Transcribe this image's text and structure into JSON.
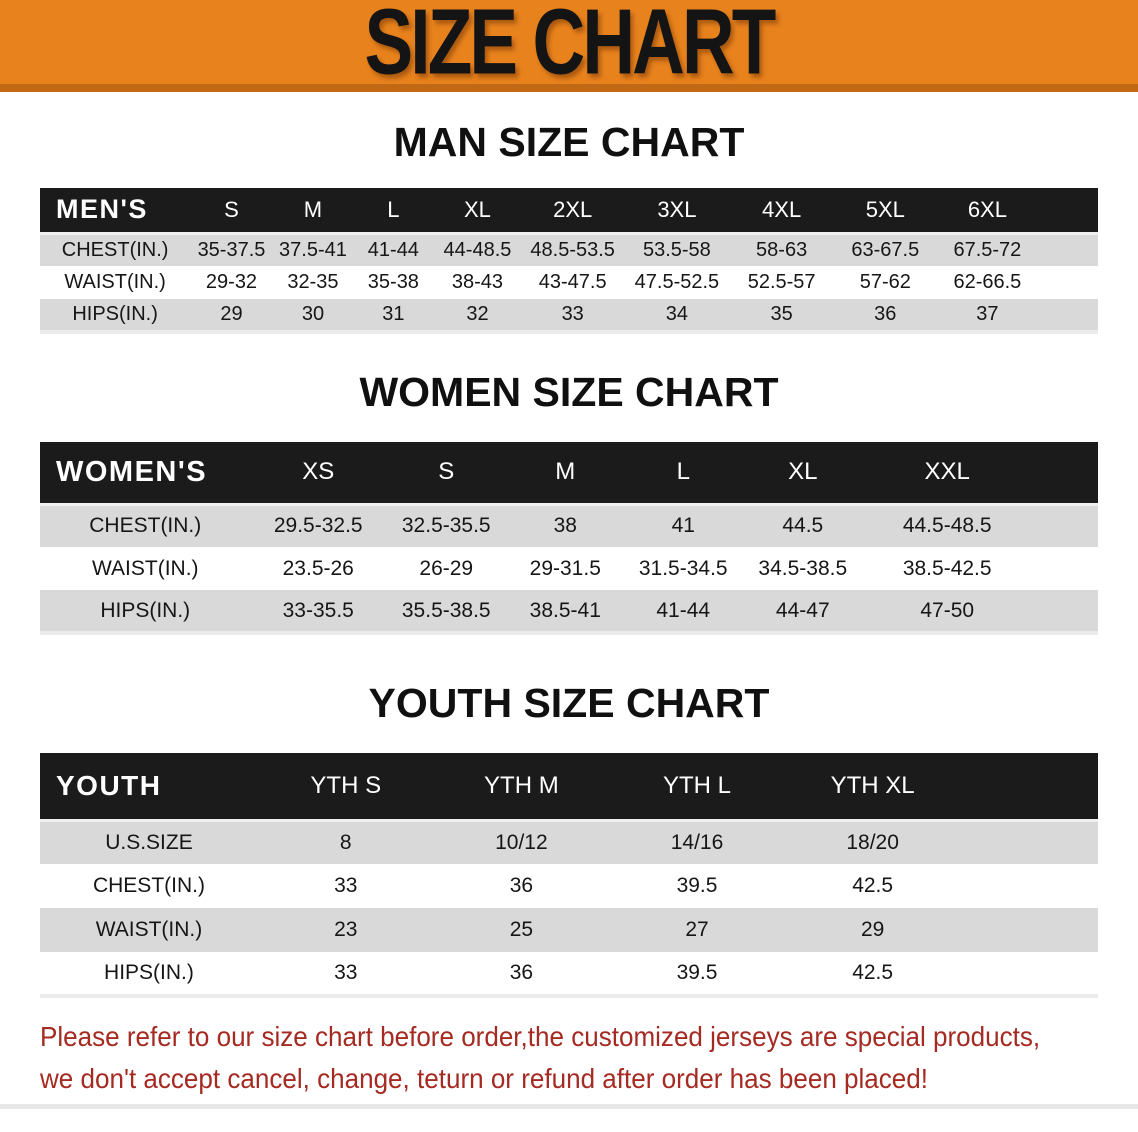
{
  "banner": {
    "title": "SIZE CHART"
  },
  "sections": [
    {
      "id": "men",
      "heading": "MAN SIZE CHART",
      "corner_label": "MEN'S",
      "columns": [
        "S",
        "M",
        "L",
        "XL",
        "2XL",
        "3XL",
        "4XL",
        "5XL",
        "6XL"
      ],
      "rows": [
        {
          "label": "CHEST(IN.)",
          "values": [
            "35-37.5",
            "37.5-41",
            "41-44",
            "44-48.5",
            "48.5-53.5",
            "53.5-58",
            "58-63",
            "63-67.5",
            "67.5-72"
          ]
        },
        {
          "label": "WAIST(IN.)",
          "values": [
            "29-32",
            "32-35",
            "35-38",
            "38-43",
            "43-47.5",
            "47.5-52.5",
            "52.5-57",
            "57-62",
            "62-66.5"
          ]
        },
        {
          "label": "HIPS(IN.)",
          "values": [
            "29",
            "30",
            "31",
            "32",
            "33",
            "34",
            "35",
            "36",
            "37"
          ]
        }
      ]
    },
    {
      "id": "women",
      "heading": "WOMEN SIZE CHART",
      "corner_label": "WOMEN'S",
      "columns": [
        "XS",
        "S",
        "M",
        "L",
        "XL",
        "XXL"
      ],
      "rows": [
        {
          "label": "CHEST(IN.)",
          "values": [
            "29.5-32.5",
            "32.5-35.5",
            "38",
            "41",
            "44.5",
            "44.5-48.5"
          ]
        },
        {
          "label": "WAIST(IN.)",
          "values": [
            "23.5-26",
            "26-29",
            "29-31.5",
            "31.5-34.5",
            "34.5-38.5",
            "38.5-42.5"
          ]
        },
        {
          "label": "HIPS(IN.)",
          "values": [
            "33-35.5",
            "35.5-38.5",
            "38.5-41",
            "41-44",
            "44-47",
            "47-50"
          ]
        }
      ]
    },
    {
      "id": "youth",
      "heading": "YOUTH SIZE CHART",
      "corner_label": "YOUTH",
      "columns": [
        "YTH S",
        "YTH M",
        "YTH L",
        "YTH XL"
      ],
      "rows": [
        {
          "label": "U.S.SIZE",
          "values": [
            "8",
            "10/12",
            "14/16",
            "18/20"
          ]
        },
        {
          "label": "CHEST(IN.)",
          "values": [
            "33",
            "36",
            "39.5",
            "42.5"
          ]
        },
        {
          "label": "WAIST(IN.)",
          "values": [
            "23",
            "25",
            "27",
            "29"
          ]
        },
        {
          "label": "HIPS(IN.)",
          "values": [
            "33",
            "36",
            "39.5",
            "42.5"
          ]
        }
      ]
    }
  ],
  "disclaimer": {
    "line1": "Please refer to our size chart before order,the customized jerseys are special products,",
    "line2": "we don't accept cancel, change, teturn or refund after order has been placed!"
  },
  "colors": {
    "banner_bg": "#E8821C",
    "banner_edge": "#C06814",
    "header_bar": "#1B1B1B",
    "stripe": "#D9D9D9",
    "disclaimer_color": "#A52A22"
  }
}
